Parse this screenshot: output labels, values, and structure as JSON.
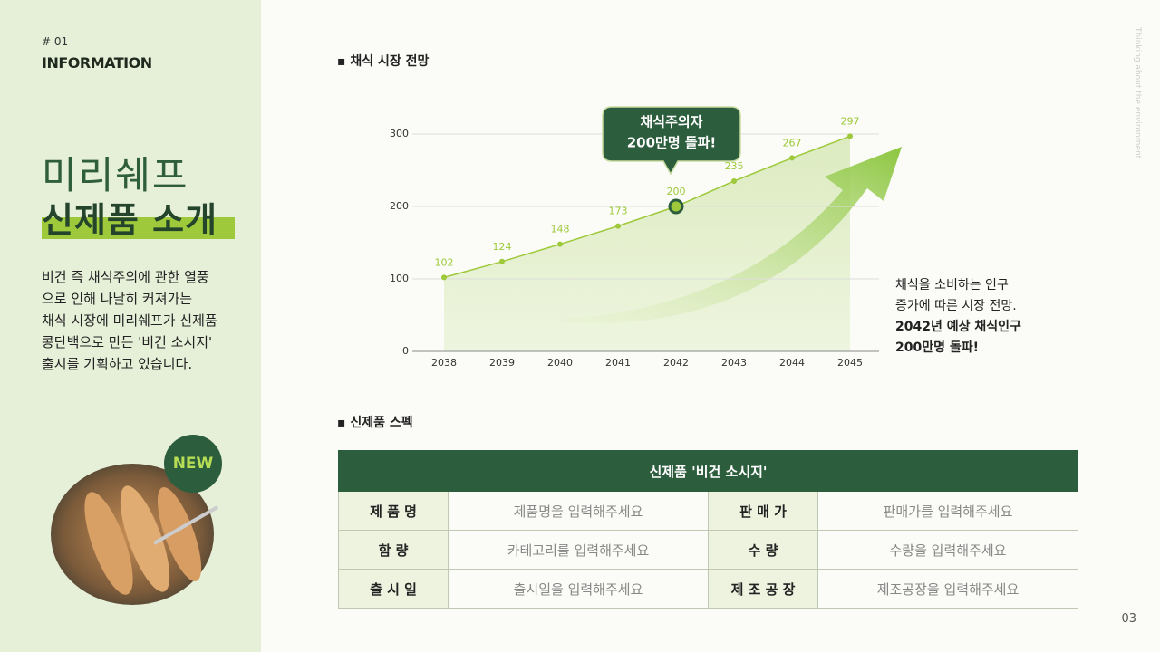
{
  "sidebar": {
    "number": "# 01",
    "label": "INFORMATION",
    "title_line1": "미리쉐프",
    "title_line2": "신제품 소개",
    "body": [
      "비건 즉 채식주의에 관한 열풍",
      "으로 인해 나날히 커져가는",
      "채식 시장에 미리쉐프가 신제품",
      "콩단백으로 만든 '비건 소시지'",
      "출시를 기획하고 있습니다."
    ],
    "badge": "NEW"
  },
  "vertical_text": "Thinking about the environment.",
  "page_number": "03",
  "chart_data": {
    "type": "line",
    "title": "채식 시장 전망",
    "categories": [
      "2038",
      "2039",
      "2040",
      "2041",
      "2042",
      "2043",
      "2044",
      "2045"
    ],
    "values": [
      102,
      124,
      148,
      173,
      200,
      235,
      267,
      297
    ],
    "ylim": [
      0,
      300
    ],
    "yticks": [
      0,
      100,
      200,
      300
    ],
    "grid": true,
    "color": "#9dc93b",
    "highlight": "2042",
    "callout": [
      "채식주의자",
      "200만명 돌파!"
    ],
    "note": [
      "채식을 소비하는 인구",
      "증가에 따른 시장 전망."
    ],
    "note_bold": [
      "2042년 예상 채식인구",
      "200만명 돌파!"
    ]
  },
  "table": {
    "title": "신제품 스펙",
    "header": "신제품 '비건 소시지'",
    "rows": [
      [
        "제 품 명",
        "제품명을 입력해주세요",
        "판 매 가",
        "판매가를 입력해주세요"
      ],
      [
        "함 량",
        "카테고리를 입력해주세요",
        "수 량",
        "수량을 입력해주세요"
      ],
      [
        "출 시 일",
        "출시일을 입력해주세요",
        "제 조 공 장",
        "제조공장을 입력해주세요"
      ]
    ]
  }
}
